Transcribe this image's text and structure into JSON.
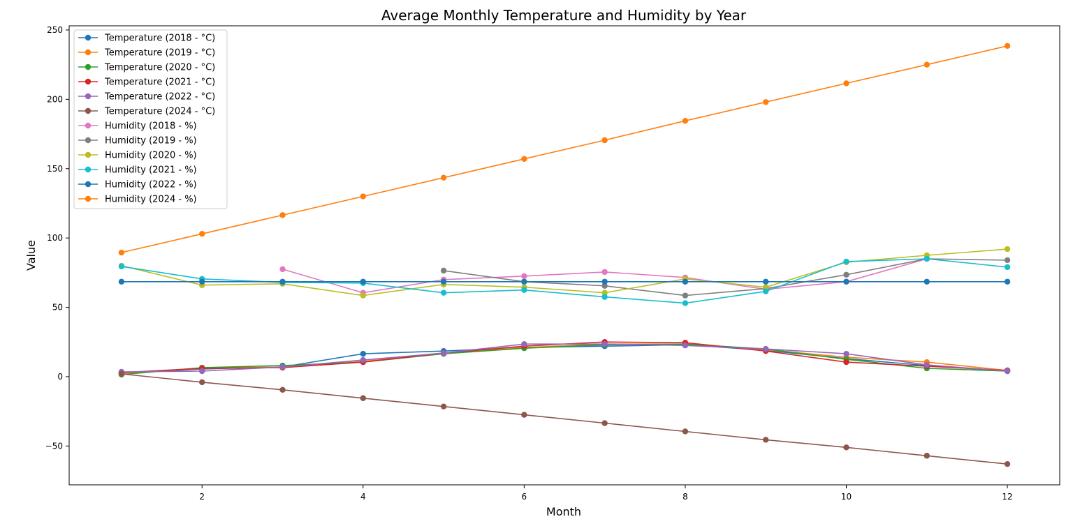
{
  "chart_data": {
    "type": "line",
    "title": "Average Monthly Temperature and Humidity by Year",
    "xlabel": "Month",
    "ylabel": "Value",
    "xlim": [
      0.35,
      12.65
    ],
    "ylim": [
      -78,
      253
    ],
    "xticks": [
      2,
      4,
      6,
      8,
      10,
      12
    ],
    "yticks": [
      -50,
      0,
      50,
      100,
      150,
      200,
      250
    ],
    "grid": false,
    "legend_position": "upper-left",
    "series": [
      {
        "name": "Temperature (2018 - °C)",
        "color": "#1f77b4",
        "x": [
          1,
          2,
          3,
          4,
          5,
          6,
          7,
          8,
          9,
          10,
          11,
          12
        ],
        "y": [
          2.5,
          5.5,
          7,
          16.5,
          18.5,
          21,
          22,
          23,
          19,
          13,
          8,
          4
        ]
      },
      {
        "name": "Temperature (2019 - °C)",
        "color": "#ff7f0e",
        "x": [
          1,
          2,
          3,
          4,
          5,
          6,
          7,
          8,
          9,
          10,
          11,
          12
        ],
        "y": [
          2.5,
          6,
          7,
          11,
          17,
          21,
          23.5,
          23.5,
          19.5,
          14,
          10.5,
          4.5
        ]
      },
      {
        "name": "Temperature (2020 - °C)",
        "color": "#2ca02c",
        "x": [
          1,
          2,
          3,
          4,
          5,
          6,
          7,
          8,
          9,
          10,
          11,
          12
        ],
        "y": [
          1.5,
          6.5,
          8,
          10.5,
          16.5,
          20.5,
          23,
          23.5,
          20,
          12.5,
          6,
          4
        ]
      },
      {
        "name": "Temperature (2021 - °C)",
        "color": "#d62728",
        "x": [
          1,
          2,
          3,
          4,
          5,
          6,
          7,
          8,
          9,
          10,
          11,
          12
        ],
        "y": [
          3,
          6,
          6.5,
          10.5,
          17,
          22,
          25,
          24.5,
          18.5,
          10.5,
          7.5,
          4.5
        ]
      },
      {
        "name": "Temperature (2022 - °C)",
        "color": "#9467bd",
        "x": [
          1,
          2,
          3,
          4,
          5,
          6,
          7,
          8,
          9,
          10,
          11,
          12
        ],
        "y": [
          3.5,
          4,
          7,
          12,
          17,
          23.5,
          23.5,
          22.5,
          20,
          16.5,
          8.5,
          4
        ]
      },
      {
        "name": "Temperature (2024 - °C)",
        "color": "#8c564b",
        "x": [
          1,
          2,
          3,
          4,
          5,
          6,
          7,
          8,
          9,
          10,
          11,
          12
        ],
        "y": [
          2,
          -4,
          -9.5,
          -15.5,
          -21.5,
          -27.5,
          -33.5,
          -39.5,
          -45.5,
          -51,
          -57,
          -63
        ]
      },
      {
        "name": "Humidity (2018 - %)",
        "color": "#e377c2",
        "x": [
          3,
          4,
          5,
          6,
          7,
          8,
          9,
          10,
          11
        ],
        "y": [
          77.5,
          60.5,
          70,
          72.5,
          75.5,
          71.5,
          63,
          68.5,
          85
        ]
      },
      {
        "name": "Humidity (2019 - %)",
        "color": "#7f7f7f",
        "x": [
          5,
          6,
          7,
          8,
          9,
          10,
          11,
          12
        ],
        "y": [
          76.5,
          68.5,
          65.5,
          58.5,
          63.5,
          73.5,
          85,
          84
        ]
      },
      {
        "name": "Humidity (2020 - %)",
        "color": "#bcbd22",
        "x": [
          1,
          2,
          3,
          4,
          5,
          6,
          7,
          8,
          9,
          10,
          11,
          12
        ],
        "y": [
          80,
          66,
          67,
          58.5,
          66.5,
          64.5,
          60.5,
          70.5,
          64.5,
          82.5,
          87.5,
          92
        ]
      },
      {
        "name": "Humidity (2021 - %)",
        "color": "#17becf",
        "x": [
          1,
          2,
          3,
          4,
          5,
          6,
          7,
          8,
          9,
          10,
          11,
          12
        ],
        "y": [
          79.5,
          70.5,
          68,
          67.5,
          60.5,
          62.5,
          57.5,
          53,
          61.5,
          83,
          85,
          79
        ]
      },
      {
        "name": "Humidity (2022 - %)",
        "color": "#1f77b4",
        "x": [
          1,
          2,
          3,
          4,
          5,
          6,
          7,
          8,
          9,
          10,
          11,
          12
        ],
        "y": [
          68.5,
          68.5,
          68.5,
          68.5,
          68.5,
          68.5,
          68.5,
          68.5,
          68.5,
          68.5,
          68.5,
          68.5
        ]
      },
      {
        "name": "Humidity (2024 - %)",
        "color": "#ff7f0e",
        "x": [
          1,
          2,
          3,
          4,
          5,
          6,
          7,
          8,
          9,
          10,
          11,
          12
        ],
        "y": [
          89.5,
          103,
          116.5,
          130,
          143.5,
          157,
          170.5,
          184.5,
          198,
          211.5,
          225,
          238.5
        ]
      }
    ]
  }
}
